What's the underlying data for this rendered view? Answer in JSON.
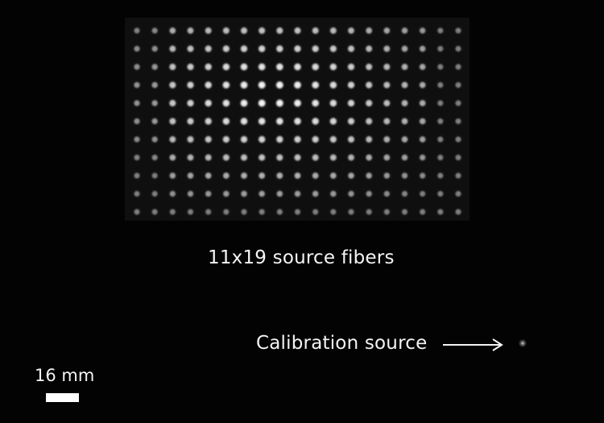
{
  "figure": {
    "array_rows": 11,
    "array_cols": 19,
    "array_label": "11x19 source fibers",
    "calibration_label": "Calibration source",
    "scale_label": "16 mm",
    "colors": {
      "background": "#030303",
      "spot": "#ffffff",
      "text": "#f4f4f4"
    },
    "icons": {
      "arrow": "right-arrow-icon"
    }
  }
}
